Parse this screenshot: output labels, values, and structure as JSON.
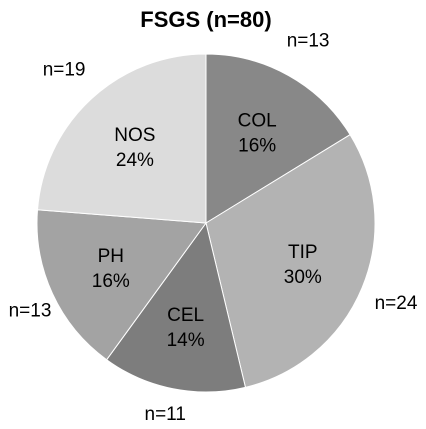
{
  "chart_data": {
    "type": "pie",
    "title": "FSGS (n=80)",
    "start": "12 o'clock",
    "direction": "clockwise",
    "slices": [
      {
        "label": "COL",
        "percent_label": "16%",
        "count_label": "n=13",
        "value": 13,
        "color": "#888888"
      },
      {
        "label": "TIP",
        "percent_label": "30%",
        "count_label": "n=24",
        "value": 24,
        "color": "#b3b3b3"
      },
      {
        "label": "CEL",
        "percent_label": "14%",
        "count_label": "n=11",
        "value": 11,
        "color": "#7d7d7d"
      },
      {
        "label": "PH",
        "percent_label": "16%",
        "count_label": "n=13",
        "value": 13,
        "color": "#a3a3a3"
      },
      {
        "label": "NOS",
        "percent_label": "24%",
        "count_label": "n=19",
        "value": 19,
        "color": "#dcdcdc"
      }
    ]
  }
}
